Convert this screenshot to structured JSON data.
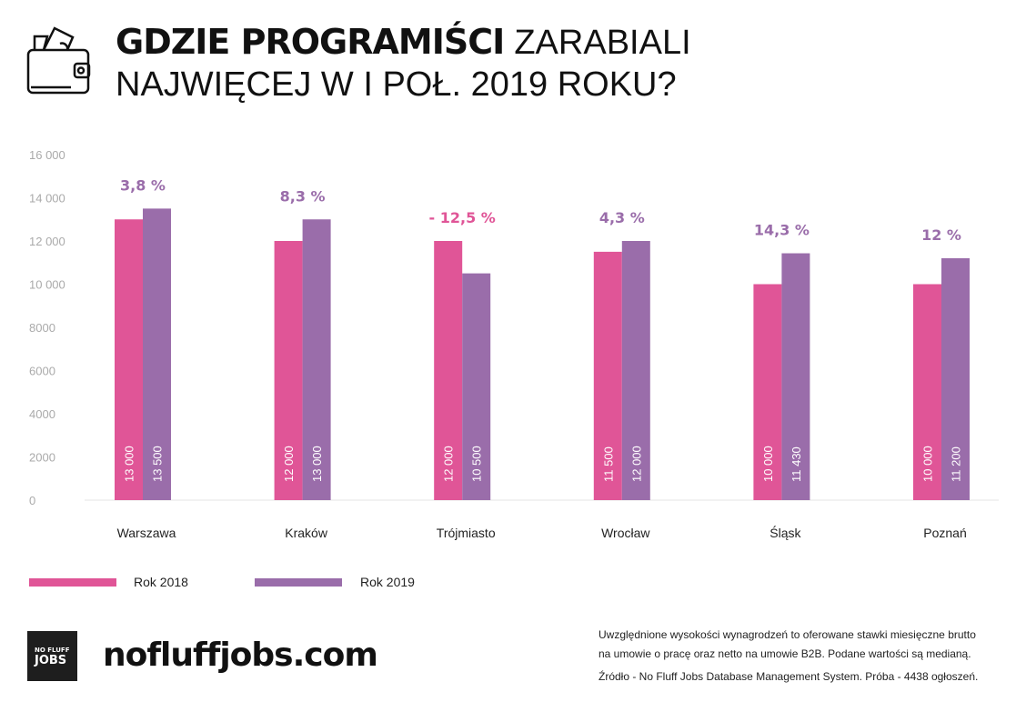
{
  "header": {
    "title_bold": "GDZIE PROGRAMIŚCI",
    "title_light": "ZARABIALI",
    "title_line2": "NAJWIĘCEJ W I POŁ. 2019 ROKU?",
    "icon": "wallet-icon"
  },
  "colors": {
    "y2018": "#E05597",
    "y2019": "#9A6DAA",
    "positive_label": "#9A6DAA",
    "negative_label": "#E05597"
  },
  "chart_data": {
    "type": "bar",
    "categories": [
      "Warszawa",
      "Kraków",
      "Trójmiasto",
      "Wrocław",
      "Śląsk",
      "Poznań"
    ],
    "series": [
      {
        "name": "Rok 2018",
        "values": [
          13000,
          12000,
          12000,
          11500,
          10000,
          10000
        ],
        "labels": [
          "13 000",
          "12 000",
          "12 000",
          "11 500",
          "10 000",
          "10 000"
        ]
      },
      {
        "name": "Rok 2019",
        "values": [
          13500,
          13000,
          10500,
          12000,
          11430,
          11200
        ],
        "labels": [
          "13 500",
          "13 000",
          "10 500",
          "12 000",
          "11 430",
          "11 200"
        ]
      }
    ],
    "change_labels": [
      "3,8 %",
      "8,3 %",
      "- 12,5 %",
      "4,3 %",
      "14,3 %",
      "12 %"
    ],
    "yticks": [
      0,
      2000,
      4000,
      6000,
      8000,
      10000,
      12000,
      14000,
      16000
    ],
    "ytick_labels": [
      "0",
      "2000",
      "4000",
      "6000",
      "8000",
      "10 000",
      "12 000",
      "14 000",
      "16 000"
    ],
    "ylim": [
      0,
      16000
    ],
    "grid": false,
    "legend": "bottom-left"
  },
  "legend": [
    {
      "label": "Rok 2018"
    },
    {
      "label": "Rok 2019"
    }
  ],
  "footer": {
    "logo_line1": "NO FLUFF",
    "logo_line2": "JOBS",
    "site": "nofluffjobs.com",
    "note1": "Uwzględnione wysokości wynagrodzeń to oferowane stawki miesięczne brutto",
    "note2": "na umowie o pracę oraz netto na umowie B2B. Podane wartości są medianą.",
    "source": "Źródło - No Fluff Jobs Database Management System. Próba - 4438 ogłoszeń."
  }
}
